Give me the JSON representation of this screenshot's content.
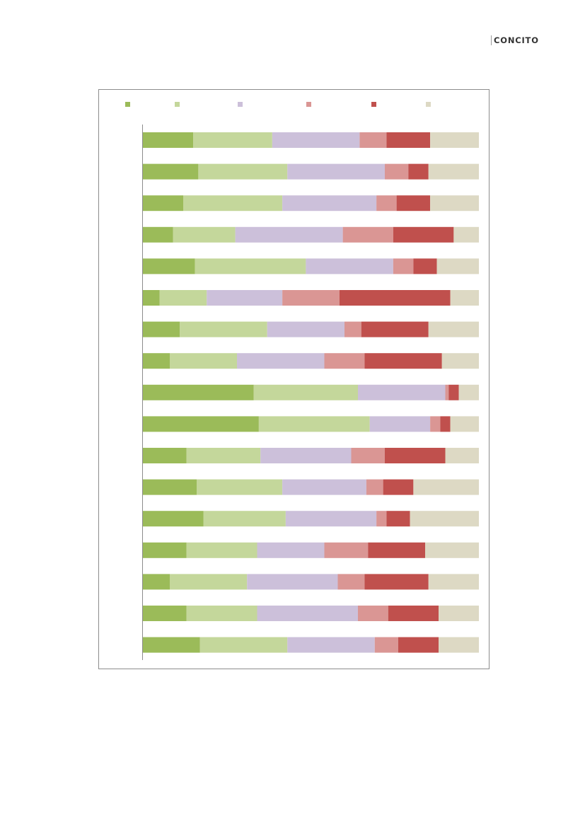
{
  "brand": {
    "name": "CONCITO"
  },
  "chart_data": {
    "type": "bar",
    "orientation": "horizontal",
    "stacked": true,
    "percent": true,
    "xlim": [
      0,
      100
    ],
    "grid": false,
    "legend_placement": "top",
    "categories": [
      "",
      "",
      "",
      "",
      "",
      "",
      "",
      "",
      "",
      "",
      "",
      "",
      "",
      "",
      "",
      "",
      ""
    ],
    "series": [
      {
        "color": "#9bbb59",
        "values": [
          15,
          16.5,
          12,
          9,
          15.5,
          5,
          11,
          8,
          33,
          34.5,
          13,
          16,
          18,
          13,
          8,
          13,
          17
        ]
      },
      {
        "color": "#c4d79b",
        "values": [
          23.5,
          26.5,
          29.5,
          18.5,
          33,
          14,
          26,
          20,
          31,
          33,
          22,
          25.5,
          24.5,
          21,
          23,
          21,
          26
        ]
      },
      {
        "color": "#ccc0da",
        "values": [
          26,
          29,
          28,
          32,
          26,
          22.5,
          23,
          26,
          26,
          18,
          27,
          25,
          27,
          20,
          27,
          30,
          26
        ]
      },
      {
        "color": "#da9694",
        "values": [
          8,
          7,
          6,
          15,
          6,
          17,
          5,
          12,
          1,
          3,
          10,
          5,
          3,
          13,
          8,
          9,
          7
        ]
      },
      {
        "color": "#c0504d",
        "values": [
          13,
          6,
          10,
          18,
          7,
          33,
          20,
          23,
          3,
          3,
          18,
          9,
          7,
          17,
          19,
          15,
          12
        ]
      },
      {
        "color": "#ddd9c4",
        "values": [
          14.5,
          15,
          14.5,
          7.5,
          12.5,
          8.5,
          15,
          11,
          6,
          8.5,
          10,
          19.5,
          20.5,
          16,
          15,
          12,
          12
        ]
      }
    ]
  }
}
